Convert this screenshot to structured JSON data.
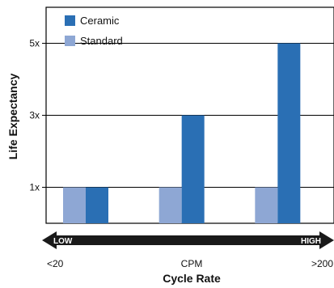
{
  "chart_data": {
    "type": "bar",
    "ylabel": "Life Expectancy",
    "xlabel": "Cycle Rate",
    "ylim": [
      0,
      6.0
    ],
    "yticks": [
      {
        "value": 1,
        "label": "1x"
      },
      {
        "value": 3,
        "label": "3x"
      },
      {
        "value": 5,
        "label": "5x"
      }
    ],
    "grid": true,
    "legend_position": "top-left",
    "categories": [
      "",
      "",
      ""
    ],
    "series": [
      {
        "name": "Standard",
        "color": "#8ea7d4",
        "values": [
          1,
          1,
          1
        ]
      },
      {
        "name": "Ceramic",
        "color": "#2a6fb4",
        "values": [
          1,
          3,
          5
        ]
      }
    ],
    "legend_order": [
      "Ceramic",
      "Standard"
    ],
    "arrow": {
      "left_label": "LOW",
      "right_label": "HIGH",
      "color": "#1a1a1a"
    },
    "x_scale_labels": {
      "left": "<20",
      "center": "CPM",
      "right": ">200"
    }
  }
}
